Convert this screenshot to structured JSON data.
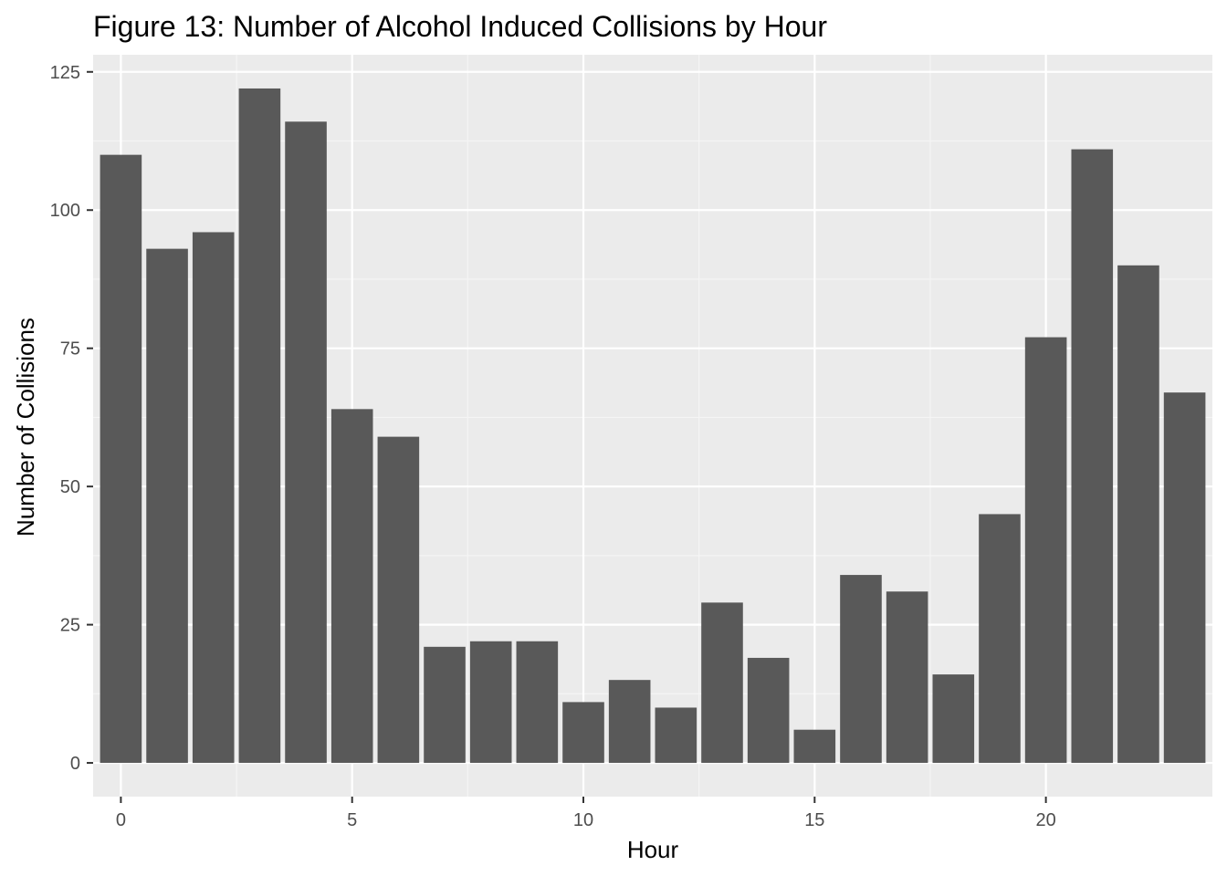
{
  "chart_data": {
    "type": "bar",
    "title": "Figure 13: Number of Alcohol Induced Collisions by Hour",
    "xlabel": "Hour",
    "ylabel": "Number of Collisions",
    "x": [
      0,
      1,
      2,
      3,
      4,
      5,
      6,
      7,
      8,
      9,
      10,
      11,
      12,
      13,
      14,
      15,
      16,
      17,
      18,
      19,
      20,
      21,
      22,
      23
    ],
    "values": [
      110,
      93,
      96,
      122,
      116,
      64,
      59,
      21,
      22,
      22,
      11,
      15,
      10,
      29,
      19,
      6,
      34,
      31,
      16,
      45,
      77,
      111,
      90,
      67
    ],
    "xlim": [
      -0.6,
      23.6
    ],
    "ylim": [
      -6.1,
      128.1
    ],
    "x_ticks": [
      0,
      5,
      10,
      15,
      20
    ],
    "y_ticks": [
      0,
      25,
      50,
      75,
      100,
      125
    ],
    "x_tick_labels": [
      "0",
      "5",
      "10",
      "15",
      "20"
    ],
    "y_tick_labels": [
      "0",
      "25",
      "50",
      "75",
      "100",
      "125"
    ],
    "grid": true,
    "colors": {
      "bar": "#595959",
      "panel": "#ebebeb",
      "grid_major": "#ffffff",
      "grid_minor": "#f5f5f5",
      "tick_text": "#4d4d4d"
    }
  }
}
